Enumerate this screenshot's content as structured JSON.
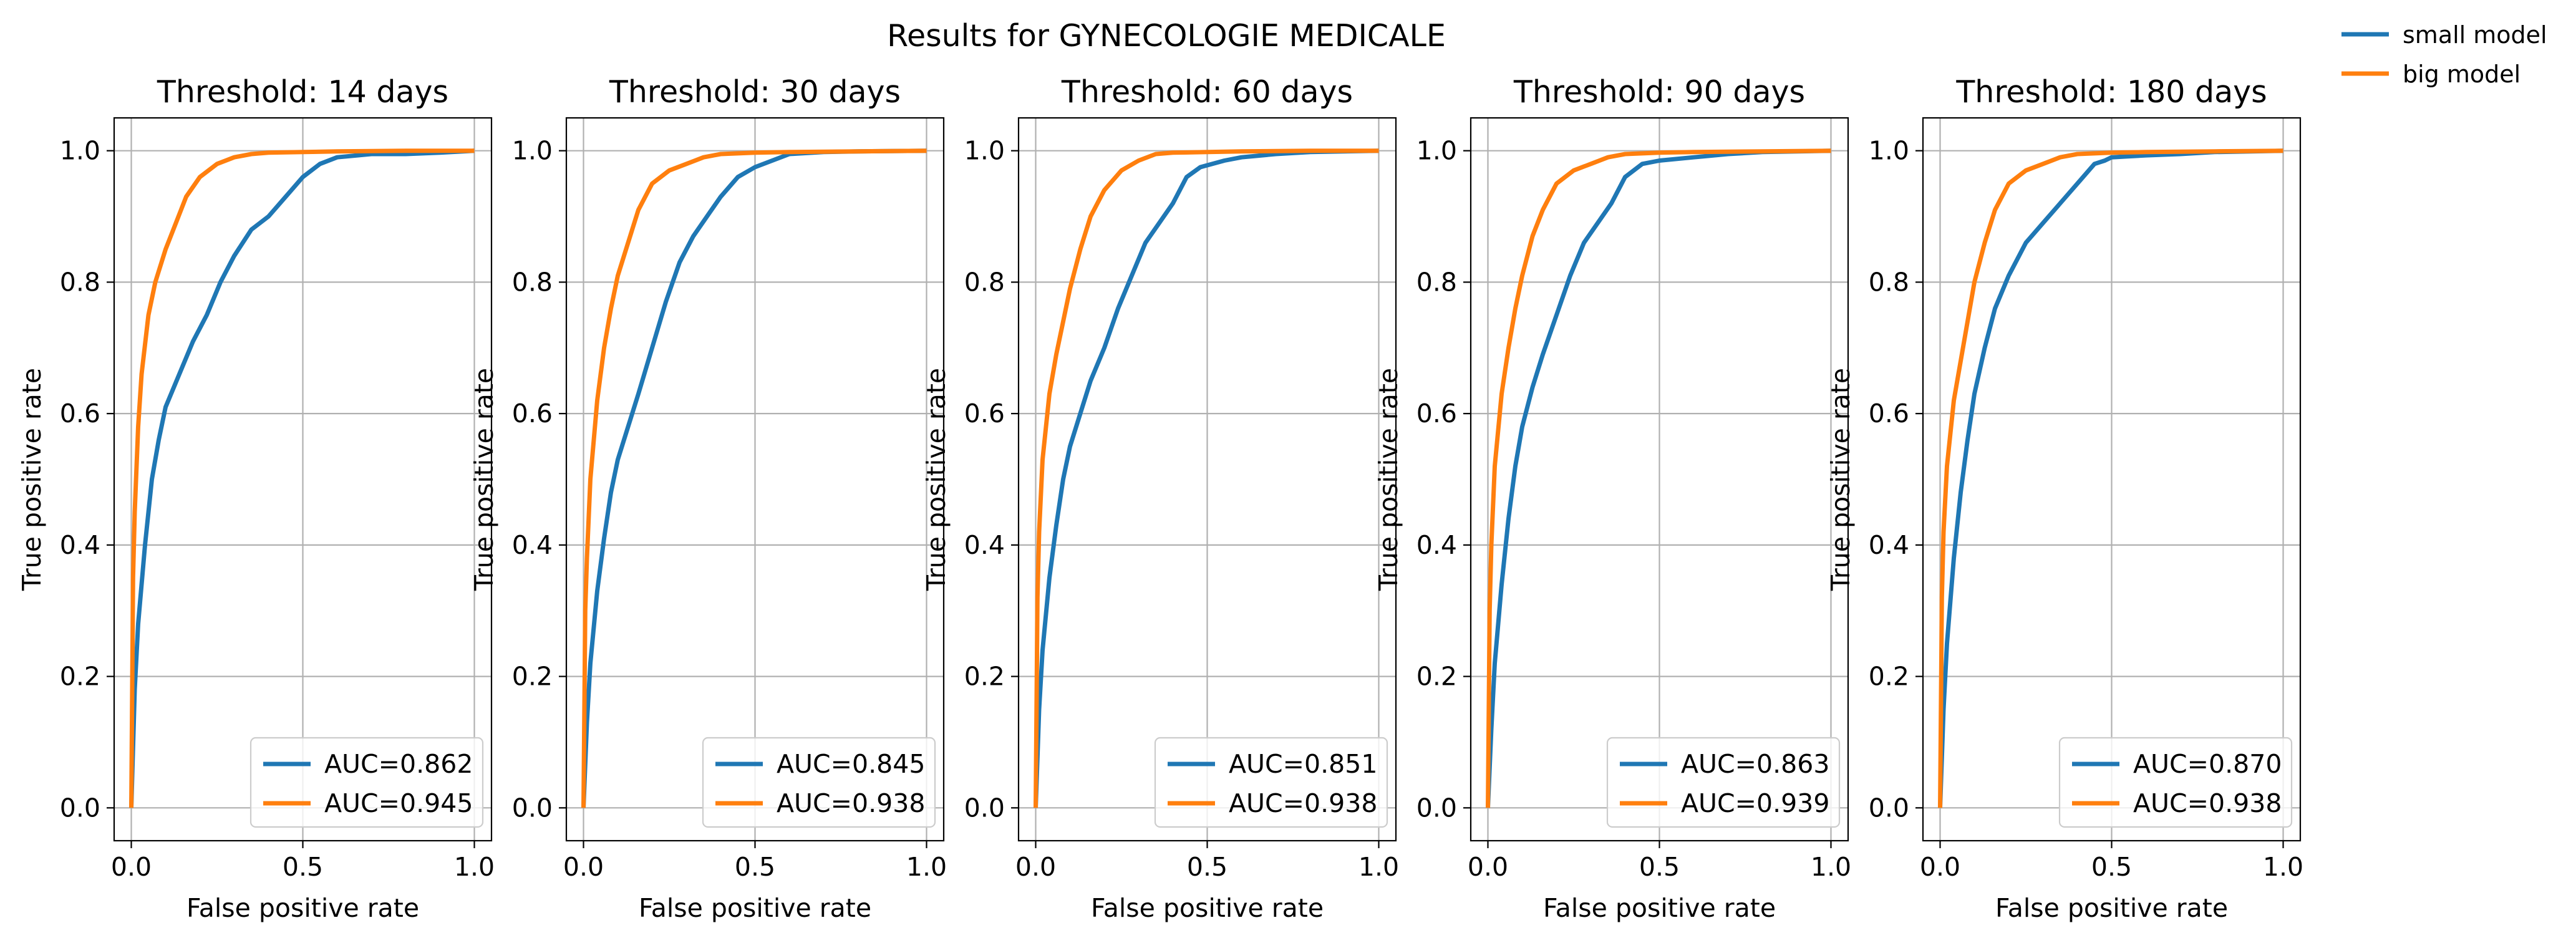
{
  "figure": {
    "suptitle": "Results for GYNECOLOGIE MEDICALE",
    "legend": [
      {
        "label": "small model",
        "color": "#1f77b4"
      },
      {
        "label": "big model",
        "color": "#ff7f0e"
      }
    ]
  },
  "chart_data": [
    {
      "type": "line",
      "title": "Threshold: 14 days",
      "xlabel": "False positive rate",
      "ylabel": "True positive rate",
      "xlim": [
        -0.05,
        1.05
      ],
      "ylim": [
        -0.05,
        1.05
      ],
      "xticks": [
        0.0,
        0.5,
        1.0
      ],
      "xtick_labels": [
        "0.0",
        "0.5",
        "1.0"
      ],
      "yticks": [
        0.0,
        0.2,
        0.4,
        0.6,
        0.8,
        1.0
      ],
      "ytick_labels": [
        "0.0",
        "0.2",
        "0.4",
        "0.6",
        "0.8",
        "1.0"
      ],
      "grid": true,
      "legend_position": "lower-right",
      "series": [
        {
          "legend": "AUC=0.862",
          "color": "#1f77b4",
          "x": [
            0,
            0.01,
            0.02,
            0.04,
            0.06,
            0.08,
            0.1,
            0.14,
            0.18,
            0.22,
            0.26,
            0.3,
            0.35,
            0.4,
            0.45,
            0.5,
            0.55,
            0.6,
            0.7,
            0.8,
            0.9,
            1.0
          ],
          "y": [
            0,
            0.18,
            0.28,
            0.4,
            0.5,
            0.56,
            0.61,
            0.66,
            0.71,
            0.75,
            0.8,
            0.84,
            0.88,
            0.9,
            0.93,
            0.96,
            0.98,
            0.99,
            0.995,
            0.995,
            0.997,
            1.0
          ]
        },
        {
          "legend": "AUC=0.945",
          "color": "#ff7f0e",
          "x": [
            0,
            0.005,
            0.01,
            0.02,
            0.03,
            0.05,
            0.07,
            0.1,
            0.13,
            0.16,
            0.2,
            0.25,
            0.3,
            0.35,
            0.4,
            0.5,
            0.6,
            0.8,
            1.0
          ],
          "y": [
            0,
            0.35,
            0.45,
            0.58,
            0.66,
            0.75,
            0.8,
            0.85,
            0.89,
            0.93,
            0.96,
            0.98,
            0.99,
            0.995,
            0.997,
            0.998,
            0.999,
            1.0,
            1.0
          ]
        }
      ]
    },
    {
      "type": "line",
      "title": "Threshold: 30 days",
      "xlabel": "False positive rate",
      "ylabel": "True positive rate",
      "xlim": [
        -0.05,
        1.05
      ],
      "ylim": [
        -0.05,
        1.05
      ],
      "xticks": [
        0.0,
        0.5,
        1.0
      ],
      "xtick_labels": [
        "0.0",
        "0.5",
        "1.0"
      ],
      "yticks": [
        0.0,
        0.2,
        0.4,
        0.6,
        0.8,
        1.0
      ],
      "ytick_labels": [
        "0.0",
        "0.2",
        "0.4",
        "0.6",
        "0.8",
        "1.0"
      ],
      "grid": true,
      "legend_position": "lower-right",
      "series": [
        {
          "legend": "AUC=0.845",
          "color": "#1f77b4",
          "x": [
            0,
            0.01,
            0.02,
            0.04,
            0.06,
            0.08,
            0.1,
            0.13,
            0.16,
            0.2,
            0.24,
            0.28,
            0.32,
            0.36,
            0.4,
            0.45,
            0.5,
            0.55,
            0.6,
            0.7,
            0.8,
            1.0
          ],
          "y": [
            0,
            0.13,
            0.22,
            0.33,
            0.41,
            0.48,
            0.53,
            0.58,
            0.63,
            0.7,
            0.77,
            0.83,
            0.87,
            0.9,
            0.93,
            0.96,
            0.975,
            0.985,
            0.995,
            0.998,
            0.999,
            1.0
          ]
        },
        {
          "legend": "AUC=0.938",
          "color": "#ff7f0e",
          "x": [
            0,
            0.005,
            0.01,
            0.02,
            0.04,
            0.06,
            0.08,
            0.1,
            0.13,
            0.16,
            0.2,
            0.25,
            0.3,
            0.35,
            0.4,
            0.5,
            0.6,
            0.8,
            1.0
          ],
          "y": [
            0,
            0.3,
            0.38,
            0.5,
            0.62,
            0.7,
            0.76,
            0.81,
            0.86,
            0.91,
            0.95,
            0.97,
            0.98,
            0.99,
            0.995,
            0.997,
            0.998,
            0.999,
            1.0
          ]
        }
      ]
    },
    {
      "type": "line",
      "title": "Threshold: 60 days",
      "xlabel": "False positive rate",
      "ylabel": "True positive rate",
      "xlim": [
        -0.05,
        1.05
      ],
      "ylim": [
        -0.05,
        1.05
      ],
      "xticks": [
        0.0,
        0.5,
        1.0
      ],
      "xtick_labels": [
        "0.0",
        "0.5",
        "1.0"
      ],
      "yticks": [
        0.0,
        0.2,
        0.4,
        0.6,
        0.8,
        1.0
      ],
      "ytick_labels": [
        "0.0",
        "0.2",
        "0.4",
        "0.6",
        "0.8",
        "1.0"
      ],
      "grid": true,
      "legend_position": "lower-right",
      "series": [
        {
          "legend": "AUC=0.851",
          "color": "#1f77b4",
          "x": [
            0,
            0.01,
            0.02,
            0.04,
            0.06,
            0.08,
            0.1,
            0.13,
            0.16,
            0.2,
            0.24,
            0.28,
            0.32,
            0.36,
            0.4,
            0.44,
            0.48,
            0.55,
            0.6,
            0.7,
            0.8,
            1.0
          ],
          "y": [
            0,
            0.15,
            0.24,
            0.35,
            0.43,
            0.5,
            0.55,
            0.6,
            0.65,
            0.7,
            0.76,
            0.81,
            0.86,
            0.89,
            0.92,
            0.96,
            0.975,
            0.985,
            0.99,
            0.995,
            0.998,
            1.0
          ]
        },
        {
          "legend": "AUC=0.938",
          "color": "#ff7f0e",
          "x": [
            0,
            0.005,
            0.01,
            0.02,
            0.04,
            0.06,
            0.08,
            0.1,
            0.13,
            0.16,
            0.2,
            0.25,
            0.3,
            0.35,
            0.4,
            0.5,
            0.6,
            0.8,
            1.0
          ],
          "y": [
            0,
            0.32,
            0.42,
            0.53,
            0.63,
            0.69,
            0.74,
            0.79,
            0.85,
            0.9,
            0.94,
            0.97,
            0.985,
            0.995,
            0.997,
            0.998,
            0.999,
            1.0,
            1.0
          ]
        }
      ]
    },
    {
      "type": "line",
      "title": "Threshold: 90 days",
      "xlabel": "False positive rate",
      "ylabel": "True positive rate",
      "xlim": [
        -0.05,
        1.05
      ],
      "ylim": [
        -0.05,
        1.05
      ],
      "xticks": [
        0.0,
        0.5,
        1.0
      ],
      "xtick_labels": [
        "0.0",
        "0.5",
        "1.0"
      ],
      "yticks": [
        0.0,
        0.2,
        0.4,
        0.6,
        0.8,
        1.0
      ],
      "ytick_labels": [
        "0.0",
        "0.2",
        "0.4",
        "0.6",
        "0.8",
        "1.0"
      ],
      "grid": true,
      "legend_position": "lower-right",
      "series": [
        {
          "legend": "AUC=0.863",
          "color": "#1f77b4",
          "x": [
            0,
            0.01,
            0.02,
            0.04,
            0.06,
            0.08,
            0.1,
            0.13,
            0.16,
            0.2,
            0.24,
            0.28,
            0.32,
            0.36,
            0.4,
            0.45,
            0.5,
            0.6,
            0.7,
            0.8,
            1.0
          ],
          "y": [
            0,
            0.12,
            0.22,
            0.34,
            0.44,
            0.52,
            0.58,
            0.64,
            0.69,
            0.75,
            0.81,
            0.86,
            0.89,
            0.92,
            0.96,
            0.98,
            0.985,
            0.99,
            0.995,
            0.998,
            1.0
          ]
        },
        {
          "legend": "AUC=0.939",
          "color": "#ff7f0e",
          "x": [
            0,
            0.005,
            0.01,
            0.02,
            0.04,
            0.06,
            0.08,
            0.1,
            0.13,
            0.16,
            0.2,
            0.25,
            0.3,
            0.35,
            0.4,
            0.5,
            0.6,
            0.8,
            1.0
          ],
          "y": [
            0,
            0.3,
            0.4,
            0.52,
            0.63,
            0.7,
            0.76,
            0.81,
            0.87,
            0.91,
            0.95,
            0.97,
            0.98,
            0.99,
            0.995,
            0.997,
            0.998,
            0.999,
            1.0
          ]
        }
      ]
    },
    {
      "type": "line",
      "title": "Threshold: 180 days",
      "xlabel": "False positive rate",
      "ylabel": "True positive rate",
      "xlim": [
        -0.05,
        1.05
      ],
      "ylim": [
        -0.05,
        1.05
      ],
      "xticks": [
        0.0,
        0.5,
        1.0
      ],
      "xtick_labels": [
        "0.0",
        "0.5",
        "1.0"
      ],
      "yticks": [
        0.0,
        0.2,
        0.4,
        0.6,
        0.8,
        1.0
      ],
      "ytick_labels": [
        "0.0",
        "0.2",
        "0.4",
        "0.6",
        "0.8",
        "1.0"
      ],
      "grid": true,
      "legend_position": "lower-right",
      "series": [
        {
          "legend": "AUC=0.870",
          "color": "#1f77b4",
          "x": [
            0,
            0.01,
            0.02,
            0.04,
            0.06,
            0.08,
            0.1,
            0.13,
            0.16,
            0.2,
            0.25,
            0.3,
            0.35,
            0.4,
            0.45,
            0.48,
            0.5,
            0.6,
            0.7,
            0.8,
            1.0
          ],
          "y": [
            0,
            0.15,
            0.25,
            0.38,
            0.48,
            0.56,
            0.63,
            0.7,
            0.76,
            0.81,
            0.86,
            0.89,
            0.92,
            0.95,
            0.98,
            0.985,
            0.99,
            0.993,
            0.995,
            0.998,
            1.0
          ]
        },
        {
          "legend": "AUC=0.938",
          "color": "#ff7f0e",
          "x": [
            0,
            0.005,
            0.01,
            0.02,
            0.04,
            0.06,
            0.08,
            0.1,
            0.13,
            0.16,
            0.2,
            0.25,
            0.3,
            0.35,
            0.4,
            0.5,
            0.6,
            0.8,
            1.0
          ],
          "y": [
            0,
            0.32,
            0.42,
            0.52,
            0.62,
            0.68,
            0.74,
            0.8,
            0.86,
            0.91,
            0.95,
            0.97,
            0.98,
            0.99,
            0.995,
            0.997,
            0.998,
            0.999,
            1.0
          ]
        }
      ]
    }
  ]
}
